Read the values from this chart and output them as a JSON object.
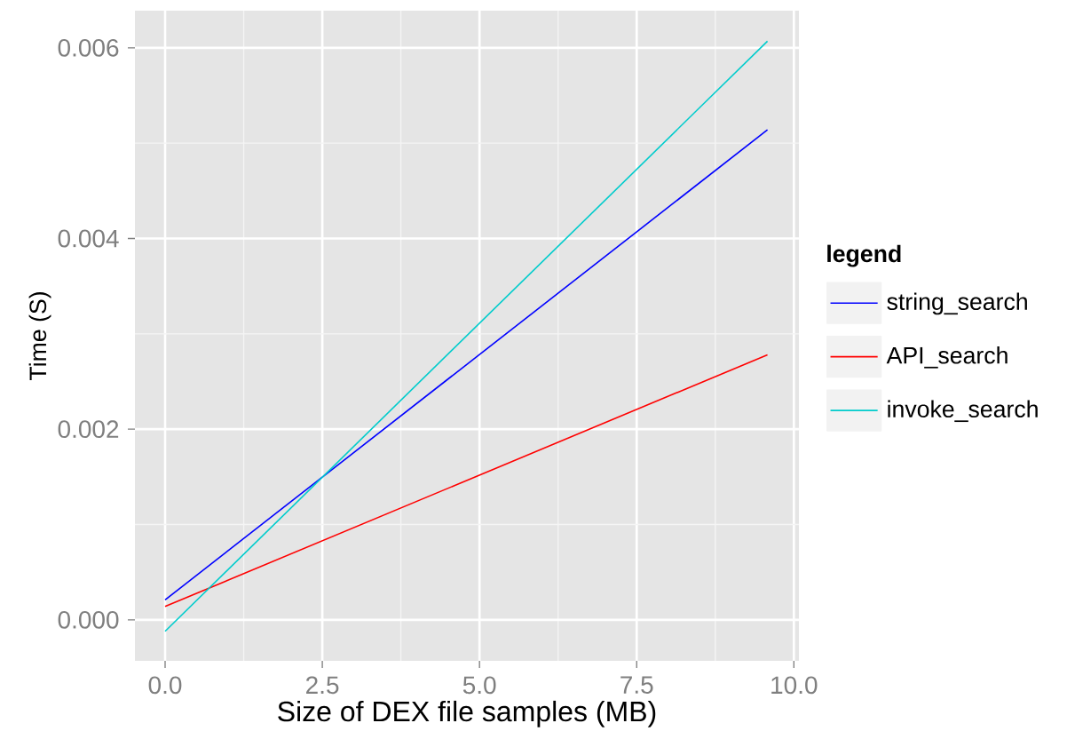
{
  "chart_data": {
    "type": "line",
    "xlabel": "Size of DEX file samples (MB)",
    "ylabel": "Time (S)",
    "legend_title": "legend",
    "x": [
      0,
      9.58
    ],
    "series": [
      {
        "name": "string_search",
        "color": "#0000ff",
        "values": [
          0.00021,
          0.00514
        ]
      },
      {
        "name": "API_search",
        "color": "#ff0000",
        "values": [
          0.00014,
          0.00278
        ]
      },
      {
        "name": "invoke_search",
        "color": "#00cccc",
        "values": [
          -0.00012,
          0.00607
        ]
      }
    ],
    "xlim": [
      -0.48,
      10.08
    ],
    "ylim": [
      -0.00043,
      0.00639
    ],
    "xticks": [
      {
        "value": 0,
        "label": "0.0"
      },
      2.5,
      {
        "value": 5,
        "label": "5.0"
      },
      7.5,
      {
        "value": 10,
        "label": "10.0"
      }
    ],
    "yticks": [
      {
        "value": 0,
        "label": "0.000"
      },
      0.002,
      0.004,
      0.006
    ],
    "grid": true,
    "legend": "right",
    "marker": "none",
    "line_style": "solid"
  }
}
